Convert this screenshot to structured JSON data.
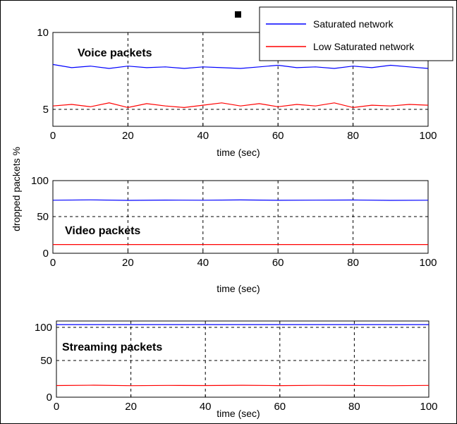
{
  "figure": {
    "ylabel": "dropped packets %",
    "legend": {
      "position": "top-right",
      "entries": [
        {
          "label": "Saturated network",
          "color": "#0000ff"
        },
        {
          "label": "Low Saturated network",
          "color": "#ff0000"
        }
      ]
    }
  },
  "chart_data": [
    {
      "type": "line",
      "panel_label": "Voice packets",
      "xlabel": "time (sec)",
      "xlim": [
        0,
        100
      ],
      "ylim": [
        4,
        10
      ],
      "xticks": [
        "0",
        "20",
        "40",
        "60",
        "80",
        "100"
      ],
      "yticks": [
        "5",
        "10"
      ],
      "grid": true,
      "series": [
        {
          "name": "Saturated network",
          "color": "#0000ff",
          "x": [
            0,
            5,
            10,
            15,
            20,
            25,
            30,
            35,
            40,
            45,
            50,
            55,
            60,
            65,
            70,
            75,
            80,
            85,
            90,
            95,
            100
          ],
          "y": [
            7.95,
            7.75,
            7.85,
            7.7,
            7.85,
            7.75,
            7.8,
            7.7,
            7.8,
            7.75,
            7.7,
            7.8,
            7.9,
            7.75,
            7.8,
            7.7,
            7.85,
            7.75,
            7.9,
            7.8,
            7.7
          ]
        },
        {
          "name": "Low Saturated network",
          "color": "#ff0000",
          "x": [
            0,
            5,
            10,
            15,
            20,
            25,
            30,
            35,
            40,
            45,
            50,
            55,
            60,
            65,
            70,
            75,
            80,
            85,
            90,
            95,
            100
          ],
          "y": [
            5.3,
            5.4,
            5.25,
            5.5,
            5.2,
            5.45,
            5.3,
            5.2,
            5.35,
            5.5,
            5.3,
            5.45,
            5.25,
            5.4,
            5.3,
            5.5,
            5.2,
            5.35,
            5.3,
            5.4,
            5.35
          ]
        }
      ]
    },
    {
      "type": "line",
      "panel_label": "Video packets",
      "xlabel": "time (sec)",
      "xlim": [
        0,
        100
      ],
      "ylim": [
        0,
        100
      ],
      "xticks": [
        "0",
        "20",
        "40",
        "60",
        "80",
        "100"
      ],
      "yticks": [
        "0",
        "50",
        "100"
      ],
      "grid": true,
      "series": [
        {
          "name": "Saturated network",
          "color": "#0000ff",
          "x": [
            0,
            10,
            20,
            30,
            40,
            50,
            60,
            70,
            80,
            90,
            100
          ],
          "y": [
            73,
            73.5,
            72.8,
            73.2,
            73,
            73.4,
            72.9,
            73.1,
            73.3,
            72.8,
            73
          ]
        },
        {
          "name": "Low Saturated network",
          "color": "#ff0000",
          "x": [
            0,
            100
          ],
          "y": [
            12,
            12
          ]
        }
      ]
    },
    {
      "type": "line",
      "panel_label": "Streaming packets",
      "xlabel": "time (sec)",
      "xlim": [
        0,
        100
      ],
      "ylim": [
        0,
        105
      ],
      "xticks": [
        "0",
        "20",
        "40",
        "60",
        "80",
        "100"
      ],
      "yticks": [
        "0",
        "50",
        "100"
      ],
      "grid": true,
      "series": [
        {
          "name": "Saturated network",
          "color": "#0000ff",
          "x": [
            0,
            100
          ],
          "y": [
            100,
            100
          ]
        },
        {
          "name": "Low Saturated network",
          "color": "#ff0000",
          "x": [
            0,
            10,
            20,
            30,
            40,
            50,
            60,
            70,
            80,
            90,
            100
          ],
          "y": [
            16,
            16.5,
            15.8,
            16.2,
            16,
            16.4,
            15.9,
            16.3,
            16.1,
            15.8,
            16.2
          ]
        }
      ]
    }
  ]
}
